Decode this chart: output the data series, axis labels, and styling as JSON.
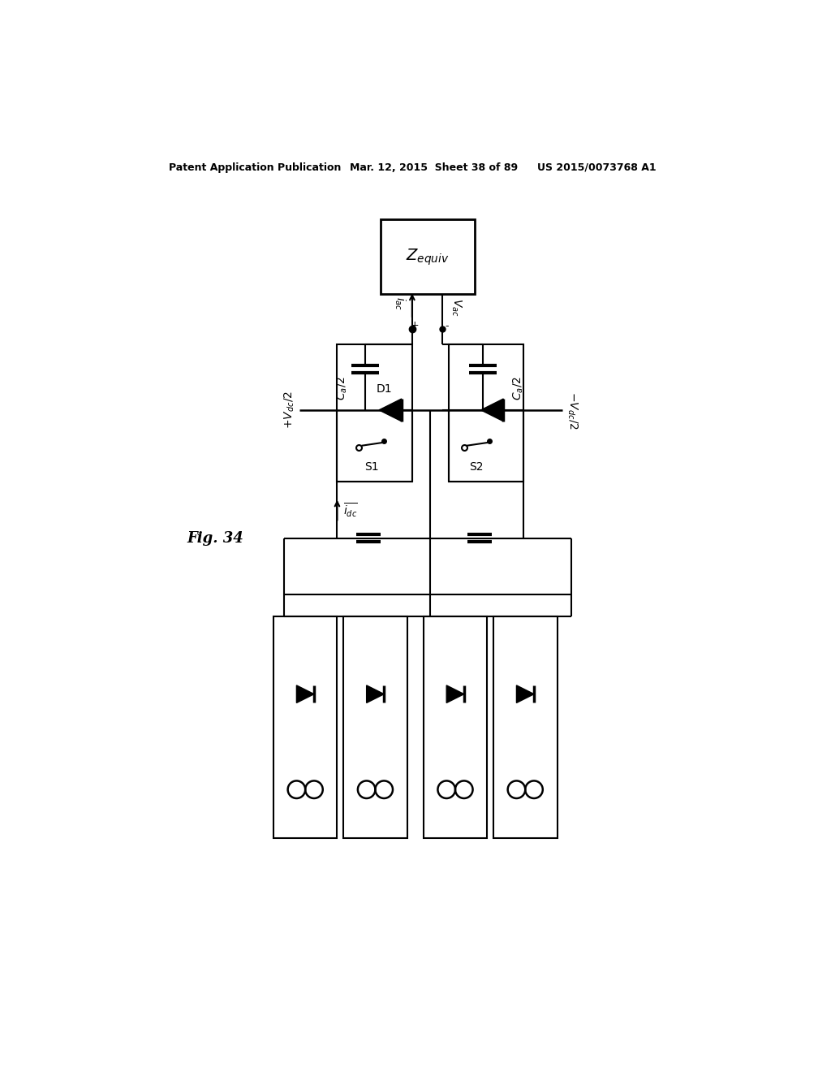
{
  "bg_color": "#ffffff",
  "line_color": "#000000",
  "header_left": "Patent Application Publication",
  "header_mid": "Mar. 12, 2015  Sheet 38 of 89",
  "header_right": "US 2015/0073768 A1",
  "fig_label": "Fig. 34"
}
